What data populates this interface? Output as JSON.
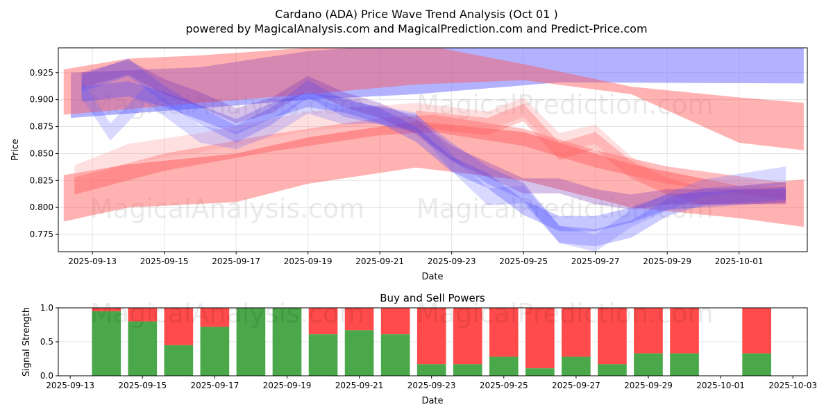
{
  "chart_data": [
    {
      "type": "area",
      "title": "Cardano (ADA) Price Wave Trend Analysis (Oct 01 )",
      "subtitle": "powered by MagicalAnalysis.com and MagicalPrediction.com and Predict-Price.com",
      "xlabel": "Date",
      "ylabel": "Price",
      "x_start_date": "2025-09-13",
      "xlim_days": [
        -0.95,
        19.9
      ],
      "ylim": [
        0.759,
        0.948
      ],
      "grid": true,
      "x_ticks": [
        "2025-09-13",
        "2025-09-15",
        "2025-09-17",
        "2025-09-19",
        "2025-09-21",
        "2025-09-23",
        "2025-09-25",
        "2025-09-27",
        "2025-09-29",
        "2025-10-01"
      ],
      "y_ticks": [
        0.775,
        0.8,
        0.825,
        0.85,
        0.875,
        0.9,
        0.925
      ],
      "watermarks": [
        "MagicalAnalysis.com",
        "MagicalPrediction.com"
      ],
      "bands": [
        {
          "name": "upper-blue-band",
          "color": "#6666ff",
          "opacity": 0.5,
          "upper": [
            [
              -0.6,
              0.925
            ],
            [
              3,
              0.93
            ],
            [
              6,
              0.945
            ],
            [
              9,
              0.952
            ],
            [
              19.8,
              0.952
            ]
          ],
          "lower": [
            [
              -0.6,
              0.883
            ],
            [
              3,
              0.892
            ],
            [
              6,
              0.9
            ],
            [
              9,
              0.905
            ],
            [
              13,
              0.916
            ],
            [
              19.8,
              0.915
            ]
          ]
        },
        {
          "name": "upper-red-band",
          "color": "#ff5555",
          "opacity": 0.45,
          "upper": [
            [
              -0.8,
              0.928
            ],
            [
              1,
              0.938
            ],
            [
              3,
              0.941
            ],
            [
              6,
              0.948
            ],
            [
              9,
              0.952
            ],
            [
              12,
              0.933
            ],
            [
              15,
              0.912
            ],
            [
              18,
              0.902
            ],
            [
              19.8,
              0.897
            ]
          ],
          "lower": [
            [
              -0.8,
              0.886
            ],
            [
              3,
              0.897
            ],
            [
              6,
              0.905
            ],
            [
              9,
              0.914
            ],
            [
              12,
              0.918
            ],
            [
              15,
              0.905
            ],
            [
              18,
              0.86
            ],
            [
              19.8,
              0.853
            ]
          ]
        },
        {
          "name": "lower-red-band",
          "color": "#ff5555",
          "opacity": 0.45,
          "upper": [
            [
              -0.8,
              0.83
            ],
            [
              1,
              0.84
            ],
            [
              4,
              0.85
            ],
            [
              6,
              0.865
            ],
            [
              9,
              0.88
            ],
            [
              12,
              0.87
            ],
            [
              15,
              0.84
            ],
            [
              18,
              0.82
            ],
            [
              19.8,
              0.826
            ]
          ],
          "lower": [
            [
              -0.8,
              0.787
            ],
            [
              1,
              0.8
            ],
            [
              4,
              0.805
            ],
            [
              6,
              0.822
            ],
            [
              9,
              0.837
            ],
            [
              12,
              0.825
            ],
            [
              15,
              0.8
            ],
            [
              18,
              0.79
            ],
            [
              19.8,
              0.782
            ]
          ]
        },
        {
          "name": "thin-red-band",
          "color": "#ff4444",
          "opacity": 0.35,
          "center": [
            [
              -0.5,
              0.82
            ],
            [
              2,
              0.842
            ],
            [
              5,
              0.86
            ],
            [
              8,
              0.875
            ],
            [
              9.5,
              0.878
            ],
            [
              12,
              0.865
            ],
            [
              14,
              0.845
            ],
            [
              16,
              0.83
            ],
            [
              19.3,
              0.815
            ]
          ],
          "half": 0.008
        },
        {
          "name": "light-red-band",
          "color": "#ff9999",
          "opacity": 0.3,
          "center": [
            [
              -0.5,
              0.83
            ],
            [
              1,
              0.85
            ],
            [
              3,
              0.86
            ],
            [
              6,
              0.88
            ],
            [
              9,
              0.888
            ],
            [
              11,
              0.88
            ],
            [
              12,
              0.893
            ],
            [
              13,
              0.86
            ],
            [
              14,
              0.868
            ],
            [
              15,
              0.838
            ],
            [
              16,
              0.82
            ],
            [
              19.3,
              0.812
            ]
          ],
          "half": 0.009
        },
        {
          "name": "wavy-red-band",
          "color": "#ff5555",
          "opacity": 0.3,
          "center": [
            [
              9,
              0.882
            ],
            [
              11,
              0.875
            ],
            [
              12,
              0.888
            ],
            [
              13,
              0.852
            ],
            [
              14,
              0.862
            ],
            [
              15,
              0.835
            ],
            [
              16,
              0.82
            ],
            [
              17,
              0.81
            ],
            [
              19.3,
              0.812
            ]
          ],
          "half": 0.008
        },
        {
          "name": "blue-wave-1",
          "color": "#5555ff",
          "opacity": 0.3,
          "center": [
            [
              -0.3,
              0.915
            ],
            [
              1,
              0.93
            ],
            [
              2,
              0.905
            ],
            [
              3,
              0.885
            ],
            [
              4,
              0.868
            ],
            [
              5,
              0.885
            ],
            [
              6,
              0.91
            ],
            [
              7,
              0.892
            ],
            [
              8,
              0.885
            ],
            [
              9,
              0.878
            ],
            [
              10,
              0.852
            ],
            [
              11,
              0.83
            ],
            [
              12,
              0.815
            ],
            [
              13,
              0.775
            ],
            [
              14,
              0.772
            ],
            [
              15,
              0.78
            ],
            [
              16,
              0.8
            ],
            [
              17,
              0.81
            ],
            [
              19.3,
              0.815
            ]
          ],
          "half": 0.008
        },
        {
          "name": "blue-wave-2",
          "color": "#6666ff",
          "opacity": 0.25,
          "center": [
            [
              -0.3,
              0.91
            ],
            [
              0.5,
              0.87
            ],
            [
              1.5,
              0.905
            ],
            [
              3,
              0.868
            ],
            [
              4,
              0.862
            ],
            [
              5,
              0.875
            ],
            [
              6,
              0.895
            ],
            [
              7,
              0.885
            ],
            [
              8,
              0.886
            ],
            [
              9,
              0.88
            ],
            [
              10,
              0.842
            ],
            [
              11,
              0.81
            ],
            [
              12,
              0.812
            ],
            [
              13,
              0.775
            ],
            [
              14,
              0.767
            ],
            [
              15,
              0.79
            ],
            [
              16,
              0.805
            ],
            [
              17,
              0.818
            ],
            [
              19.3,
              0.83
            ]
          ],
          "half": 0.008
        },
        {
          "name": "blue-wave-3",
          "color": "#4444ff",
          "opacity": 0.3,
          "center": [
            [
              -0.3,
              0.905
            ],
            [
              1,
              0.91
            ],
            [
              2,
              0.9
            ],
            [
              3,
              0.888
            ],
            [
              4,
              0.875
            ],
            [
              5,
              0.89
            ],
            [
              6,
              0.9
            ],
            [
              7,
              0.895
            ],
            [
              8,
              0.885
            ],
            [
              9,
              0.868
            ],
            [
              10,
              0.84
            ],
            [
              11,
              0.825
            ],
            [
              12,
              0.8
            ],
            [
              13,
              0.785
            ],
            [
              14,
              0.785
            ],
            [
              15,
              0.793
            ],
            [
              16,
              0.805
            ],
            [
              19.3,
              0.812
            ]
          ],
          "half": 0.007
        },
        {
          "name": "purple-wave",
          "color": "#7733bb",
          "opacity": 0.3,
          "center": [
            [
              -0.3,
              0.918
            ],
            [
              1,
              0.93
            ],
            [
              2,
              0.912
            ],
            [
              3,
              0.9
            ],
            [
              4,
              0.885
            ],
            [
              5,
              0.895
            ],
            [
              6,
              0.915
            ],
            [
              7,
              0.9
            ],
            [
              8,
              0.89
            ],
            [
              9,
              0.875
            ],
            [
              10,
              0.85
            ],
            [
              11,
              0.835
            ],
            [
              12,
              0.82
            ],
            [
              13,
              0.82
            ],
            [
              14,
              0.81
            ],
            [
              15,
              0.805
            ],
            [
              16,
              0.81
            ],
            [
              19.3,
              0.81
            ]
          ],
          "half": 0.007
        }
      ]
    },
    {
      "type": "bar",
      "title": "Buy and Sell Powers",
      "xlabel": "Date",
      "ylabel": "Signal Strength",
      "x_start_date": "2025-09-13",
      "xlim_days": [
        -0.33,
        20.4
      ],
      "ylim": [
        0,
        1.0
      ],
      "x_ticks": [
        "2025-09-13",
        "2025-09-15",
        "2025-09-17",
        "2025-09-19",
        "2025-09-21",
        "2025-09-23",
        "2025-09-25",
        "2025-09-27",
        "2025-09-29",
        "2025-10-01",
        "2025-10-03"
      ],
      "y_ticks": [
        "0.0",
        "0.5",
        "1.0"
      ],
      "buy_color": "#4aa84a",
      "sell_color": "#ff4b4b",
      "categories": [
        "2025-09-14",
        "2025-09-15",
        "2025-09-16",
        "2025-09-17",
        "2025-09-18",
        "2025-09-19",
        "2025-09-20",
        "2025-09-21",
        "2025-09-22",
        "2025-09-23",
        "2025-09-24",
        "2025-09-25",
        "2025-09-26",
        "2025-09-27",
        "2025-09-28",
        "2025-09-29",
        "2025-09-30",
        "2025-10-02"
      ],
      "day_index": [
        1,
        2,
        3,
        4,
        5,
        6,
        7,
        8,
        9,
        10,
        11,
        12,
        13,
        14,
        15,
        16,
        17,
        19
      ],
      "buy": [
        0.95,
        0.8,
        0.45,
        0.72,
        1.0,
        1.0,
        0.61,
        0.67,
        0.61,
        0.17,
        0.17,
        0.28,
        0.11,
        0.28,
        0.17,
        0.33,
        0.33,
        0.33
      ]
    }
  ]
}
